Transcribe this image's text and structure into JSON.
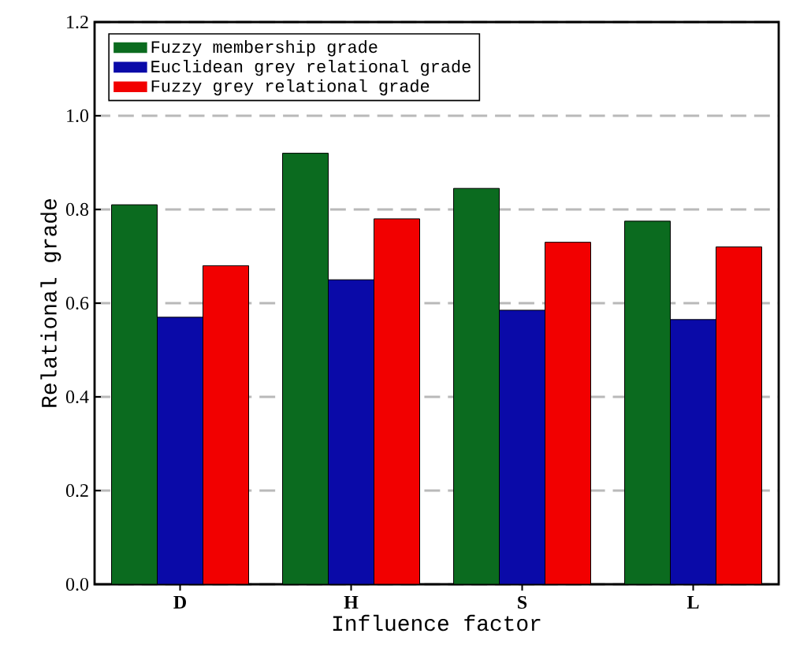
{
  "chart_data": {
    "type": "bar",
    "xlabel": "Influence factor",
    "ylabel": "Relational grade",
    "categories": [
      "D",
      "H",
      "S",
      "L"
    ],
    "series": [
      {
        "name": "Fuzzy membership grade",
        "color": "#0b6b1f",
        "values": [
          0.81,
          0.92,
          0.845,
          0.775
        ]
      },
      {
        "name": "Euclidean grey relational grade",
        "color": "#0a0aa8",
        "values": [
          0.57,
          0.65,
          0.585,
          0.565
        ]
      },
      {
        "name": "Fuzzy grey relational grade",
        "color": "#f20000",
        "values": [
          0.68,
          0.78,
          0.73,
          0.72
        ]
      }
    ],
    "ylim": [
      0,
      1.2
    ],
    "yticks": [
      {
        "value": 0,
        "label": "0.0"
      },
      {
        "value": 0.2,
        "label": "0.2"
      },
      {
        "value": 0.4,
        "label": "0.4"
      },
      {
        "value": 0.6,
        "label": "0.6"
      },
      {
        "value": 0.8,
        "label": "0.8"
      },
      {
        "value": 1.0,
        "label": "1.0"
      },
      {
        "value": 1.2,
        "label": "1.2"
      }
    ],
    "grid": "y",
    "legend": "top left"
  }
}
